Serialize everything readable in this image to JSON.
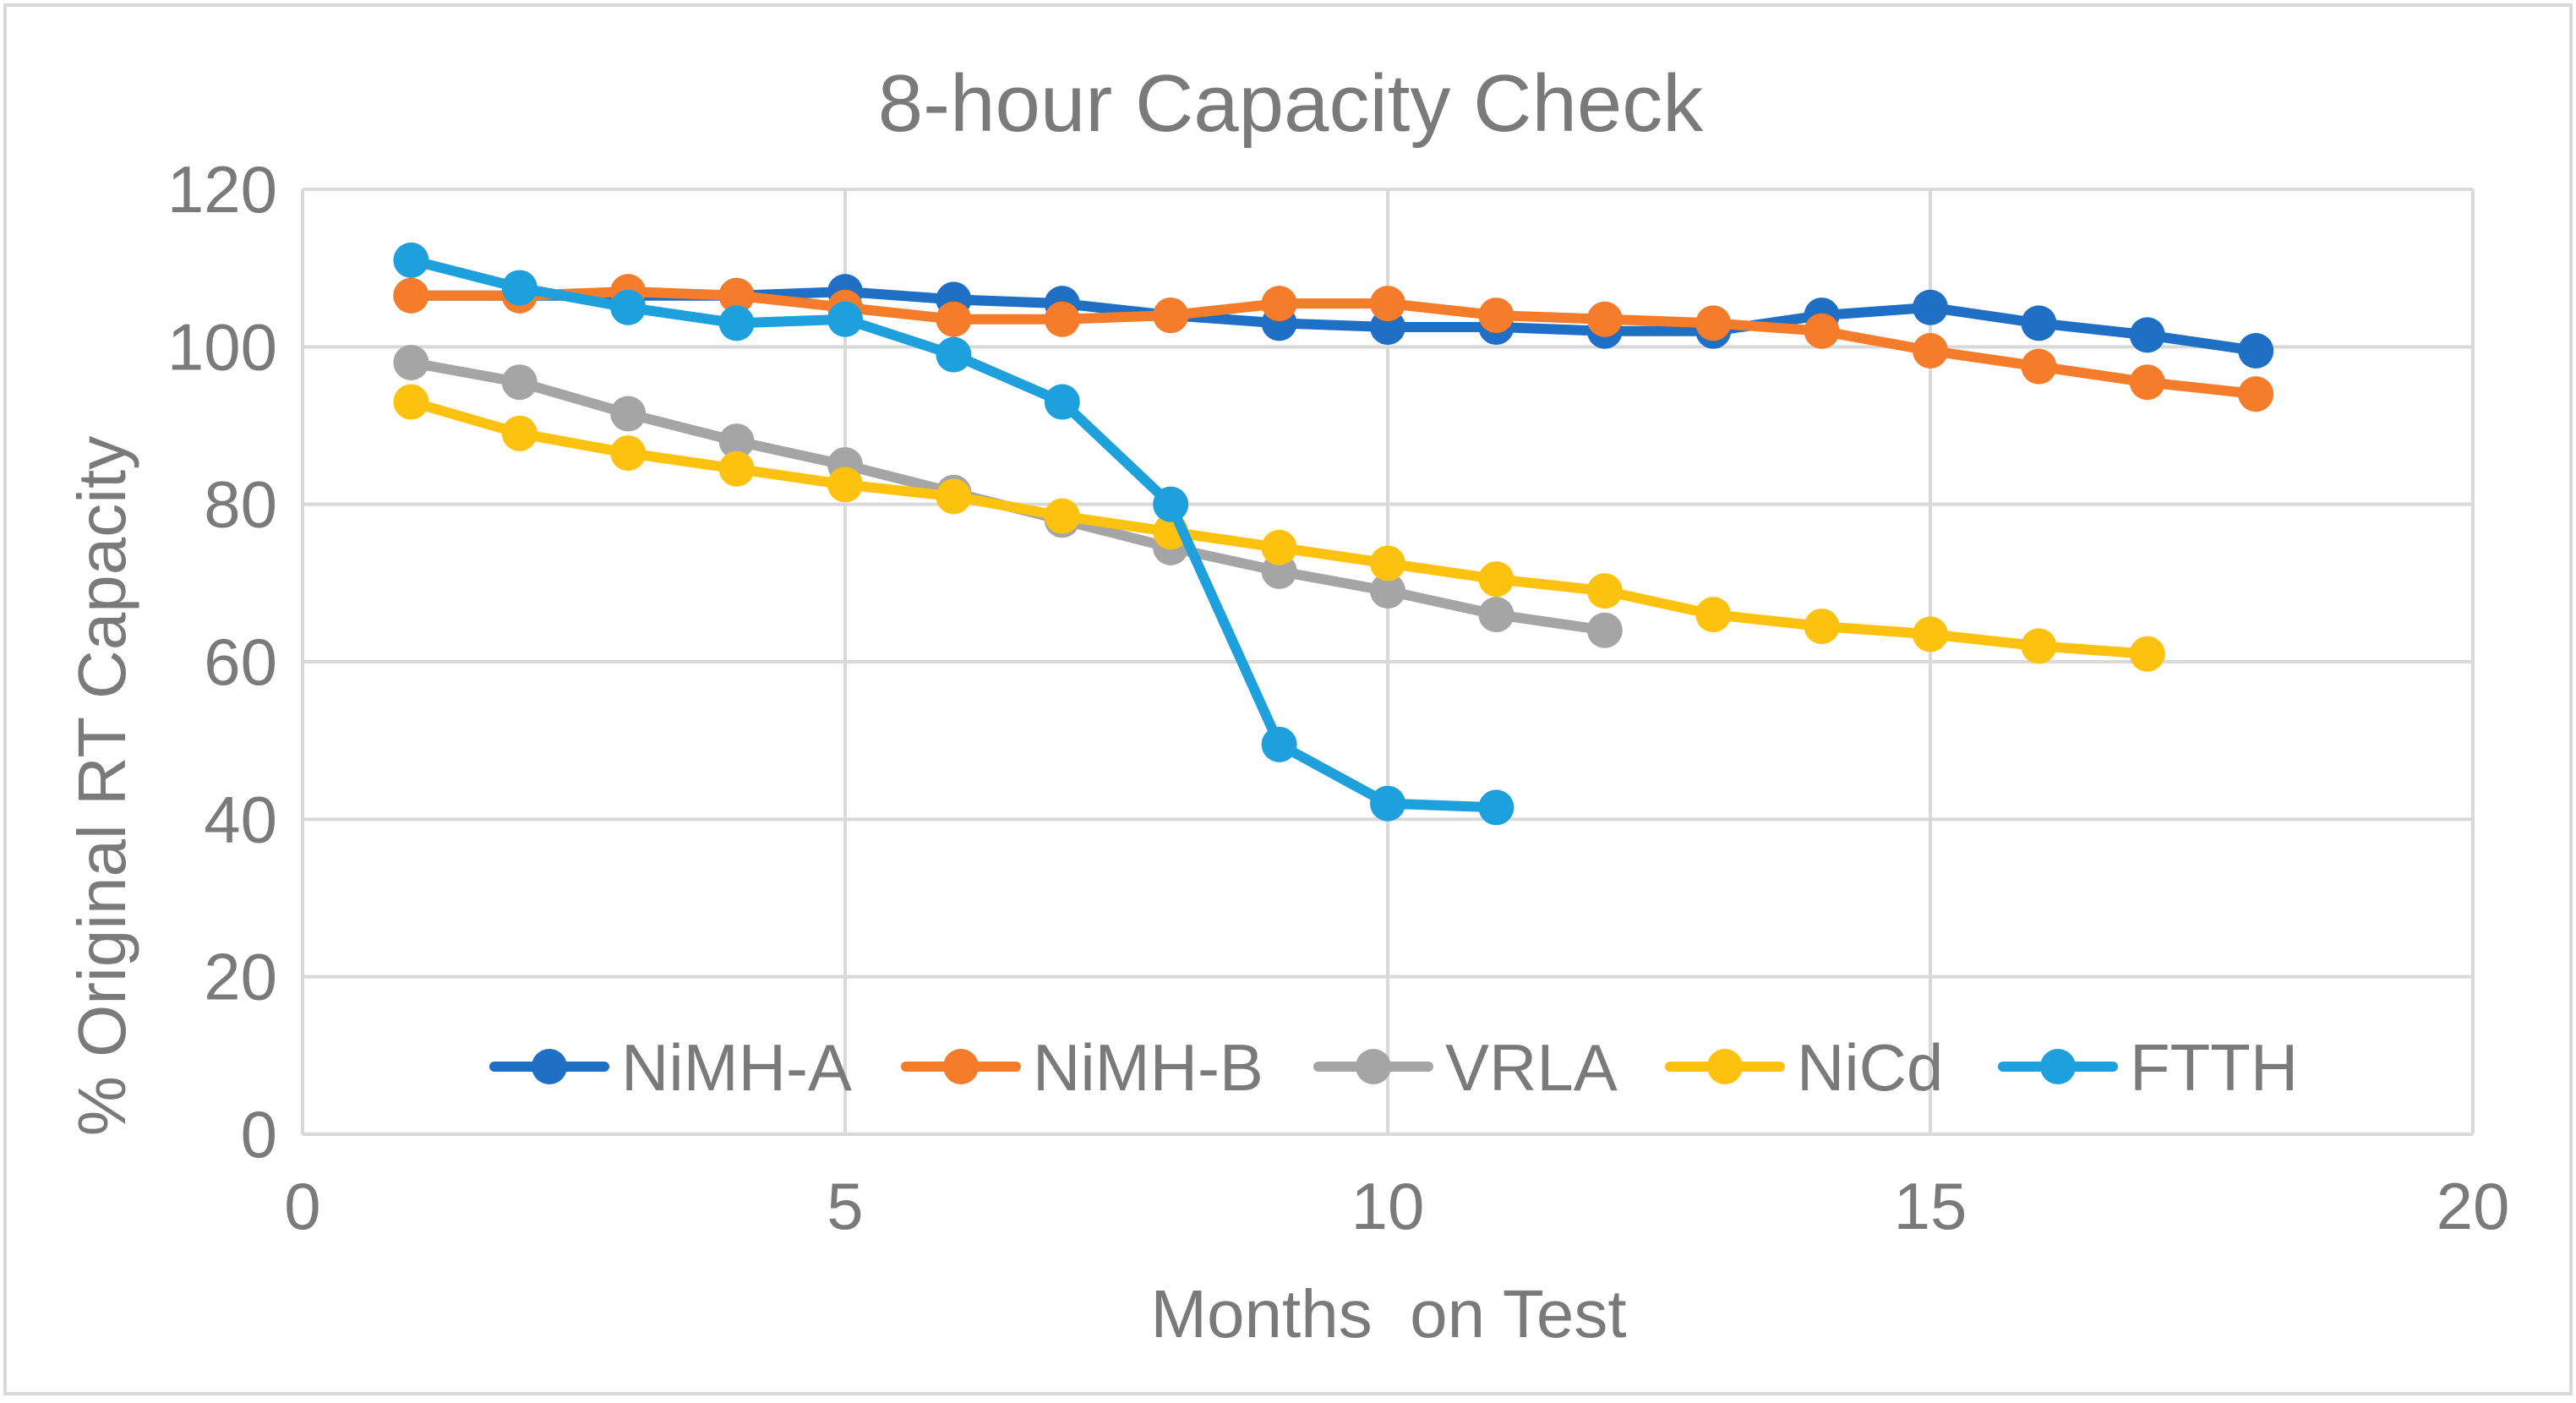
{
  "chart_data": {
    "type": "line",
    "title": "8-hour Capacity Check",
    "xlabel": "Months  on Test",
    "ylabel": "% Original RT Capacity",
    "xlim": [
      0,
      20
    ],
    "ylim": [
      0,
      120
    ],
    "xticks": [
      0,
      5,
      10,
      15,
      20
    ],
    "yticks": [
      0,
      20,
      40,
      60,
      80,
      100,
      120
    ],
    "grid": true,
    "legend_position": "bottom-inside",
    "series": [
      {
        "name": "NiMH-A",
        "color": "#1f6fc5",
        "x": [
          1,
          2,
          3,
          4,
          5,
          6,
          7,
          8,
          9,
          10,
          11,
          12,
          13,
          14,
          15,
          16,
          17,
          18
        ],
        "values": [
          106.5,
          106.5,
          106.5,
          106.5,
          107,
          106,
          105.5,
          104,
          103,
          102.5,
          102.5,
          102,
          102,
          104,
          105,
          103,
          101.5,
          99.5
        ]
      },
      {
        "name": "NiMH-B",
        "color": "#f47c2a",
        "x": [
          1,
          2,
          3,
          4,
          5,
          6,
          7,
          8,
          9,
          10,
          11,
          12,
          13,
          14,
          15,
          16,
          17,
          18
        ],
        "values": [
          106.5,
          106.5,
          107,
          106.5,
          105,
          103.5,
          103.5,
          104,
          105.5,
          105.5,
          104,
          103.5,
          103,
          102,
          99.5,
          97.5,
          95.5,
          94
        ]
      },
      {
        "name": "VRLA",
        "color": "#a5a5a5",
        "x": [
          1,
          2,
          3,
          4,
          5,
          6,
          7,
          8,
          9,
          10,
          11,
          12
        ],
        "values": [
          98,
          95.5,
          91.5,
          88,
          85,
          81.5,
          78,
          74.5,
          71.5,
          69,
          66,
          64
        ]
      },
      {
        "name": "NiCd",
        "color": "#fcc20f",
        "x": [
          1,
          2,
          3,
          4,
          5,
          6,
          7,
          8,
          9,
          10,
          11,
          12,
          13,
          14,
          15,
          16,
          17
        ],
        "values": [
          93,
          89,
          86.5,
          84.5,
          82.5,
          81,
          78.5,
          76.5,
          74.5,
          72.5,
          70.5,
          69,
          66,
          64.5,
          63.5,
          62,
          61
        ]
      },
      {
        "name": "FTTH",
        "color": "#1ea0dc",
        "x": [
          1,
          2,
          3,
          4,
          5,
          6,
          7,
          8,
          9,
          10,
          11
        ],
        "values": [
          111,
          107.5,
          105,
          103,
          103.5,
          99,
          93,
          80,
          49.5,
          42,
          41.5
        ]
      }
    ]
  }
}
